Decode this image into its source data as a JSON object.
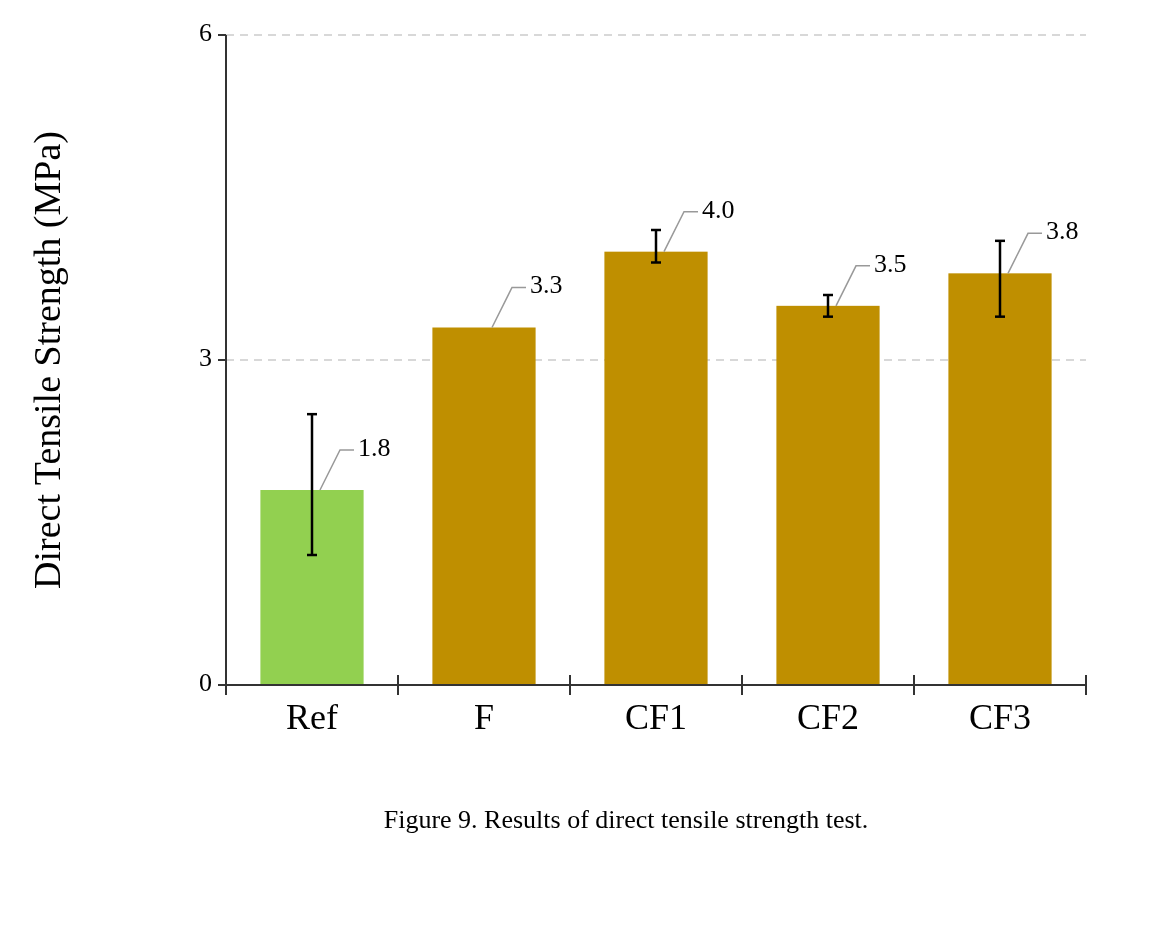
{
  "chart_data": {
    "type": "bar",
    "ylabel": "Direct Tensile Strength (MPa)",
    "categories": [
      "Ref",
      "F",
      "CF1",
      "CF2",
      "CF3"
    ],
    "values": [
      1.8,
      3.3,
      4.0,
      3.5,
      3.8
    ],
    "colors": [
      "#92d050",
      "#bf8f00",
      "#bf8f00",
      "#bf8f00",
      "#bf8f00"
    ],
    "errors": [
      [
        1.2,
        2.5
      ],
      null,
      [
        3.9,
        4.2
      ],
      [
        3.4,
        3.6
      ],
      [
        3.4,
        4.1
      ]
    ],
    "value_labels": [
      "1.8",
      "3.3",
      "4.0",
      "3.5",
      "3.8"
    ],
    "ylim": [
      0,
      6
    ],
    "yticks": [
      0,
      3,
      6
    ],
    "grid": "y",
    "annotations": [
      "Figure 9. Results of direct tensile strength test."
    ]
  }
}
